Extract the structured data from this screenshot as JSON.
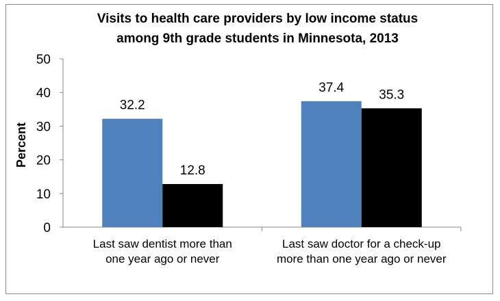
{
  "chart_data": {
    "type": "bar",
    "title": [
      "Visits to health care providers by low income status",
      "among 9th grade students in Minnesota, 2013"
    ],
    "ylabel": "Percent",
    "xlabel": "",
    "ylim": [
      0,
      50
    ],
    "yticks": [
      0,
      10,
      20,
      30,
      40,
      50
    ],
    "grid": false,
    "categories": [
      [
        "Last saw dentist more than",
        "one year ago or never"
      ],
      [
        "Last saw doctor for a check-up",
        "more than one year ago or never"
      ]
    ],
    "series": [
      {
        "values": [
          32.2,
          37.4
        ],
        "labels": [
          "32.2",
          "37.4"
        ],
        "color": "#4f81bd"
      },
      {
        "values": [
          12.8,
          35.3
        ],
        "labels": [
          "12.8",
          "35.3"
        ],
        "color": "#000000"
      }
    ]
  }
}
